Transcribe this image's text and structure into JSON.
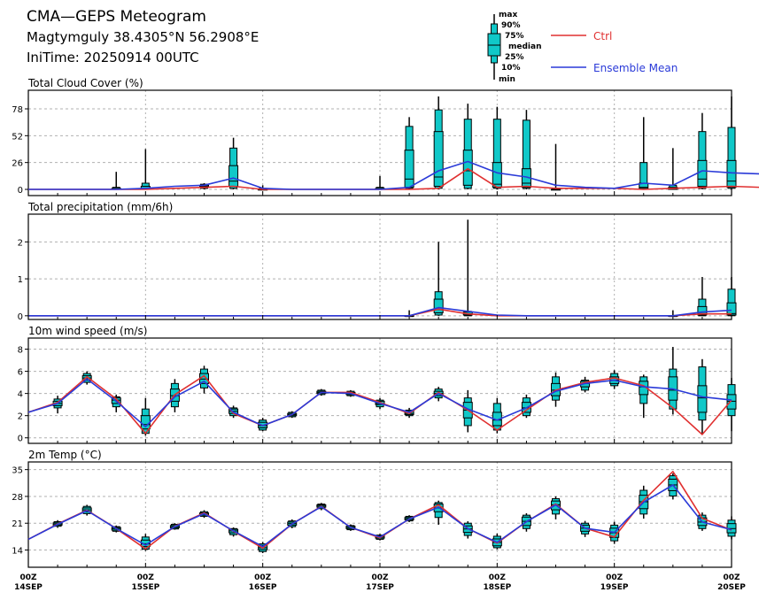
{
  "header": {
    "title": "CMA—GEPS Meteogram",
    "location": "Magtymguly 38.4305°N 56.2908°E",
    "init": "IniTime: 20250914 00UTC"
  },
  "legend": {
    "box_labels": {
      "max": "max",
      "p90": "90%",
      "p75": "75%",
      "median": "median",
      "p25": "25%",
      "p10": "10%",
      "min": "min"
    },
    "ctrl_label": "Ctrl",
    "mean_label": "Ensemble Mean"
  },
  "colors": {
    "box_fill": "#10c8c8",
    "ctrl": "#e03030",
    "mean": "#2a3ad8",
    "grid": "#b0b0b0"
  },
  "x_axis": {
    "day_labels": [
      {
        "top": "00Z",
        "bottom": "14SEP"
      },
      {
        "top": "00Z",
        "bottom": "15SEP"
      },
      {
        "top": "00Z",
        "bottom": "16SEP"
      },
      {
        "top": "00Z",
        "bottom": "17SEP"
      },
      {
        "top": "00Z",
        "bottom": "18SEP"
      },
      {
        "top": "00Z",
        "bottom": "19SEP"
      },
      {
        "top": "00Z",
        "bottom": "20SEP"
      }
    ]
  },
  "chart_data": [
    {
      "type": "boxplot",
      "title": "Total Cloud Cover (%)",
      "x_step_hours": 6,
      "yticks": [
        0,
        26,
        52,
        78
      ],
      "ylim": [
        -6,
        96
      ],
      "boxes": [
        {
          "i": 3,
          "min": 0,
          "p10": 0,
          "p25": 0,
          "median": 0,
          "p75": 1,
          "p90": 2,
          "max": 17
        },
        {
          "i": 4,
          "min": 0,
          "p10": 0,
          "p25": 0,
          "median": 1,
          "p75": 3,
          "p90": 6,
          "max": 39
        },
        {
          "i": 6,
          "min": 0,
          "p10": 1,
          "p25": 2,
          "median": 3,
          "p75": 4,
          "p90": 5,
          "max": 6
        },
        {
          "i": 7,
          "min": 0,
          "p10": 1,
          "p25": 3,
          "median": 8,
          "p75": 23,
          "p90": 40,
          "max": 50
        },
        {
          "i": 8,
          "min": 0,
          "p10": 0,
          "p25": 0,
          "median": 0,
          "p75": 0,
          "p90": 1,
          "max": 4
        },
        {
          "i": 12,
          "min": 0,
          "p10": 0,
          "p25": 0,
          "median": 0,
          "p75": 1,
          "p90": 2,
          "max": 13
        },
        {
          "i": 13,
          "min": 0,
          "p10": 1,
          "p25": 2,
          "median": 10,
          "p75": 38,
          "p90": 61,
          "max": 70
        },
        {
          "i": 14,
          "min": 0,
          "p10": 1,
          "p25": 3,
          "median": 12,
          "p75": 56,
          "p90": 77,
          "max": 90
        },
        {
          "i": 15,
          "min": 0,
          "p10": 1,
          "p25": 4,
          "median": 18,
          "p75": 38,
          "p90": 68,
          "max": 83
        },
        {
          "i": 16,
          "min": 0,
          "p10": 1,
          "p25": 2,
          "median": 5,
          "p75": 26,
          "p90": 68,
          "max": 80
        },
        {
          "i": 17,
          "min": 0,
          "p10": 1,
          "p25": 2,
          "median": 6,
          "p75": 20,
          "p90": 67,
          "max": 77
        },
        {
          "i": 18,
          "min": 0,
          "p10": 0,
          "p25": 0,
          "median": 0,
          "p75": 0,
          "p90": 1,
          "max": 44
        },
        {
          "i": 21,
          "min": 0,
          "p10": 0,
          "p25": 1,
          "median": 2,
          "p75": 6,
          "p90": 26,
          "max": 70
        },
        {
          "i": 22,
          "min": 0,
          "p10": 0,
          "p25": 0,
          "median": 1,
          "p75": 2,
          "p90": 4,
          "max": 40
        },
        {
          "i": 23,
          "min": 0,
          "p10": 1,
          "p25": 3,
          "median": 10,
          "p75": 28,
          "p90": 56,
          "max": 74
        },
        {
          "i": 24,
          "min": 0,
          "p10": 1,
          "p25": 2,
          "median": 8,
          "p75": 28,
          "p90": 60,
          "max": 90
        }
      ],
      "ctrl": [
        0,
        0,
        0,
        0,
        0,
        1,
        2,
        3,
        0,
        0,
        0,
        0,
        0,
        0,
        1,
        20,
        2,
        3,
        1,
        1,
        1,
        0,
        1,
        2,
        3,
        2
      ],
      "mean": [
        0,
        0,
        0,
        0,
        1,
        3,
        4,
        11,
        1,
        0,
        0,
        0,
        0,
        2,
        18,
        27,
        16,
        12,
        4,
        2,
        1,
        6,
        4,
        18,
        16,
        15
      ],
      "ctrl_offset": -1,
      "mean_offset": -1
    },
    {
      "type": "boxplot",
      "title": "Total precipitation (mm/6h)",
      "x_step_hours": 6,
      "yticks": [
        0,
        1,
        2
      ],
      "ylim": [
        -0.1,
        2.75
      ],
      "boxes": [
        {
          "i": 13,
          "min": 0,
          "p10": 0,
          "p25": 0,
          "median": 0,
          "p75": 0,
          "p90": 0,
          "max": 0.15
        },
        {
          "i": 14,
          "min": 0,
          "p10": 0.02,
          "p25": 0.08,
          "median": 0.17,
          "p75": 0.45,
          "p90": 0.65,
          "max": 2.0
        },
        {
          "i": 15,
          "min": 0,
          "p10": 0,
          "p25": 0.02,
          "median": 0.05,
          "p75": 0.1,
          "p90": 0.12,
          "max": 2.6
        },
        {
          "i": 22,
          "min": 0,
          "p10": 0,
          "p25": 0,
          "median": 0,
          "p75": 0,
          "p90": 0,
          "max": 0.15
        },
        {
          "i": 23,
          "min": 0,
          "p10": 0,
          "p25": 0.02,
          "median": 0.06,
          "p75": 0.25,
          "p90": 0.45,
          "max": 1.05
        },
        {
          "i": 24,
          "min": 0,
          "p10": 0,
          "p25": 0.02,
          "median": 0.06,
          "p75": 0.35,
          "p90": 0.72,
          "max": 1.05
        }
      ],
      "ctrl": [
        0,
        0,
        0,
        0,
        0,
        0,
        0,
        0,
        0,
        0,
        0,
        0,
        0,
        0,
        0.18,
        0.05,
        0,
        0,
        0,
        0,
        0,
        0,
        0,
        0.05,
        0.05
      ],
      "mean": [
        0,
        0,
        0,
        0,
        0,
        0,
        0,
        0,
        0,
        0,
        0,
        0,
        0,
        0,
        0.22,
        0.12,
        0.02,
        0,
        0,
        0,
        0,
        0,
        0,
        0.1,
        0.15
      ],
      "ctrl_offset": 0,
      "mean_offset": 0
    },
    {
      "type": "boxplot",
      "title": "10m wind speed (m/s)",
      "x_step_hours": 6,
      "yticks": [
        0,
        2,
        4,
        6,
        8
      ],
      "ylim": [
        -0.5,
        9
      ],
      "boxes": [
        {
          "i": 1,
          "min": 2.2,
          "p10": 2.7,
          "p25": 2.9,
          "median": 3.1,
          "p75": 3.3,
          "p90": 3.5,
          "max": 3.8
        },
        {
          "i": 2,
          "min": 4.8,
          "p10": 5.0,
          "p25": 5.2,
          "median": 5.4,
          "p75": 5.6,
          "p90": 5.8,
          "max": 6.0
        },
        {
          "i": 3,
          "min": 2.3,
          "p10": 2.8,
          "p25": 3.1,
          "median": 3.4,
          "p75": 3.6,
          "p90": 3.7,
          "max": 3.9
        },
        {
          "i": 4,
          "min": 0.2,
          "p10": 0.4,
          "p25": 0.8,
          "median": 1.2,
          "p75": 2.0,
          "p90": 2.6,
          "max": 3.6
        },
        {
          "i": 5,
          "min": 2.3,
          "p10": 2.8,
          "p25": 3.3,
          "median": 3.8,
          "p75": 4.4,
          "p90": 4.9,
          "max": 5.3
        },
        {
          "i": 6,
          "min": 4.0,
          "p10": 4.5,
          "p25": 4.9,
          "median": 5.3,
          "p75": 5.8,
          "p90": 6.2,
          "max": 6.5
        },
        {
          "i": 7,
          "min": 1.8,
          "p10": 2.0,
          "p25": 2.2,
          "median": 2.4,
          "p75": 2.6,
          "p90": 2.7,
          "max": 2.9
        },
        {
          "i": 8,
          "min": 0.6,
          "p10": 0.7,
          "p25": 0.9,
          "median": 1.1,
          "p75": 1.4,
          "p90": 1.6,
          "max": 1.8
        },
        {
          "i": 9,
          "min": 1.8,
          "p10": 1.9,
          "p25": 2.0,
          "median": 2.1,
          "p75": 2.2,
          "p90": 2.3,
          "max": 2.4
        },
        {
          "i": 10,
          "min": 3.8,
          "p10": 3.9,
          "p25": 4.0,
          "median": 4.1,
          "p75": 4.2,
          "p90": 4.3,
          "max": 4.4
        },
        {
          "i": 11,
          "min": 3.7,
          "p10": 3.8,
          "p25": 3.9,
          "median": 4.0,
          "p75": 4.1,
          "p90": 4.2,
          "max": 4.3
        },
        {
          "i": 12,
          "min": 2.6,
          "p10": 2.8,
          "p25": 3.0,
          "median": 3.1,
          "p75": 3.3,
          "p90": 3.4,
          "max": 3.6
        },
        {
          "i": 13,
          "min": 1.8,
          "p10": 2.0,
          "p25": 2.1,
          "median": 2.2,
          "p75": 2.4,
          "p90": 2.5,
          "max": 2.7
        },
        {
          "i": 14,
          "min": 3.3,
          "p10": 3.6,
          "p25": 3.8,
          "median": 4.0,
          "p75": 4.2,
          "p90": 4.4,
          "max": 4.6
        },
        {
          "i": 15,
          "min": 0.5,
          "p10": 1.1,
          "p25": 1.8,
          "median": 2.5,
          "p75": 3.2,
          "p90": 3.6,
          "max": 4.3
        },
        {
          "i": 16,
          "min": 0.4,
          "p10": 0.7,
          "p25": 1.1,
          "median": 1.6,
          "p75": 2.3,
          "p90": 3.1,
          "max": 3.6
        },
        {
          "i": 17,
          "min": 1.8,
          "p10": 2.0,
          "p25": 2.3,
          "median": 2.7,
          "p75": 3.2,
          "p90": 3.6,
          "max": 3.9
        },
        {
          "i": 18,
          "min": 2.8,
          "p10": 3.4,
          "p25": 3.8,
          "median": 4.3,
          "p75": 4.9,
          "p90": 5.5,
          "max": 5.9
        },
        {
          "i": 19,
          "min": 4.1,
          "p10": 4.3,
          "p25": 4.6,
          "median": 4.9,
          "p75": 5.1,
          "p90": 5.2,
          "max": 5.5
        },
        {
          "i": 20,
          "min": 4.4,
          "p10": 4.7,
          "p25": 4.9,
          "median": 5.2,
          "p75": 5.5,
          "p90": 5.8,
          "max": 6.1
        },
        {
          "i": 21,
          "min": 1.8,
          "p10": 3.1,
          "p25": 3.9,
          "median": 4.6,
          "p75": 5.1,
          "p90": 5.5,
          "max": 5.7
        },
        {
          "i": 22,
          "min": 2.1,
          "p10": 2.6,
          "p25": 3.4,
          "median": 4.3,
          "p75": 5.5,
          "p90": 6.2,
          "max": 8.2
        },
        {
          "i": 23,
          "min": 0.3,
          "p10": 1.6,
          "p25": 2.3,
          "median": 3.6,
          "p75": 4.7,
          "p90": 6.4,
          "max": 7.1
        },
        {
          "i": 24,
          "min": 0.6,
          "p10": 2.0,
          "p25": 2.6,
          "median": 3.3,
          "p75": 3.9,
          "p90": 4.8,
          "max": 5.4
        }
      ],
      "ctrl": [
        2.3,
        3.2,
        5.5,
        3.5,
        0.4,
        3.9,
        5.6,
        2.2,
        1.1,
        2.1,
        4.1,
        4.1,
        3.2,
        2.2,
        4.1,
        2.5,
        0.7,
        2.5,
        4.3,
        5.0,
        5.4,
        4.7,
        2.7,
        0.3,
        3.4
      ],
      "mean": [
        2.3,
        3.1,
        5.3,
        3.3,
        1.0,
        3.7,
        5.1,
        2.3,
        1.1,
        2.1,
        4.1,
        4.0,
        3.1,
        2.3,
        4.0,
        2.6,
        1.6,
        2.7,
        4.2,
        4.9,
        5.2,
        4.6,
        4.4,
        3.7,
        3.4
      ]
    },
    {
      "type": "boxplot",
      "title": "2m Temp (°C)",
      "x_step_hours": 6,
      "yticks": [
        14,
        21,
        28,
        35
      ],
      "ylim": [
        9.5,
        37
      ],
      "boxes": [
        {
          "i": 1,
          "min": 19.8,
          "p10": 20.2,
          "p25": 20.5,
          "median": 20.8,
          "p75": 21.1,
          "p90": 21.4,
          "max": 21.8
        },
        {
          "i": 2,
          "min": 23.0,
          "p10": 23.5,
          "p25": 24.0,
          "median": 24.5,
          "p75": 25.0,
          "p90": 25.4,
          "max": 25.8
        },
        {
          "i": 3,
          "min": 18.6,
          "p10": 18.9,
          "p25": 19.2,
          "median": 19.6,
          "p75": 19.9,
          "p90": 20.1,
          "max": 20.4
        },
        {
          "i": 4,
          "min": 13.8,
          "p10": 14.2,
          "p25": 14.9,
          "median": 15.6,
          "p75": 16.6,
          "p90": 17.4,
          "max": 18.2
        },
        {
          "i": 5,
          "min": 19.3,
          "p10": 19.5,
          "p25": 19.8,
          "median": 20.1,
          "p75": 20.4,
          "p90": 20.7,
          "max": 21.0
        },
        {
          "i": 6,
          "min": 22.4,
          "p10": 22.8,
          "p25": 23.1,
          "median": 23.4,
          "p75": 23.7,
          "p90": 24.0,
          "max": 24.4
        },
        {
          "i": 7,
          "min": 17.5,
          "p10": 18.0,
          "p25": 18.5,
          "median": 19.0,
          "p75": 19.4,
          "p90": 19.6,
          "max": 19.9
        },
        {
          "i": 8,
          "min": 13.2,
          "p10": 13.6,
          "p25": 14.1,
          "median": 14.6,
          "p75": 15.2,
          "p90": 15.6,
          "max": 16.1
        },
        {
          "i": 9,
          "min": 19.7,
          "p10": 20.1,
          "p25": 20.5,
          "median": 20.9,
          "p75": 21.3,
          "p90": 21.6,
          "max": 22.0
        },
        {
          "i": 10,
          "min": 24.4,
          "p10": 24.8,
          "p25": 25.2,
          "median": 25.5,
          "p75": 25.8,
          "p90": 26.0,
          "max": 26.3
        },
        {
          "i": 11,
          "min": 19.0,
          "p10": 19.3,
          "p25": 19.6,
          "median": 19.9,
          "p75": 20.2,
          "p90": 20.4,
          "max": 20.7
        },
        {
          "i": 12,
          "min": 16.5,
          "p10": 16.8,
          "p25": 17.1,
          "median": 17.4,
          "p75": 17.7,
          "p90": 17.9,
          "max": 18.2
        },
        {
          "i": 13,
          "min": 21.3,
          "p10": 21.6,
          "p25": 21.9,
          "median": 22.2,
          "p75": 22.5,
          "p90": 22.8,
          "max": 23.1
        },
        {
          "i": 14,
          "min": 20.6,
          "p10": 22.5,
          "p25": 24.0,
          "median": 25.0,
          "p75": 26.0,
          "p90": 26.4,
          "max": 26.9
        },
        {
          "i": 15,
          "min": 17.0,
          "p10": 17.8,
          "p25": 18.6,
          "median": 19.5,
          "p75": 20.3,
          "p90": 21.0,
          "max": 21.5
        },
        {
          "i": 16,
          "min": 14.2,
          "p10": 14.6,
          "p25": 15.1,
          "median": 16.0,
          "p75": 16.9,
          "p90": 17.6,
          "max": 18.3
        },
        {
          "i": 17,
          "min": 18.8,
          "p10": 19.6,
          "p25": 20.4,
          "median": 21.5,
          "p75": 22.6,
          "p90": 23.1,
          "max": 23.6
        },
        {
          "i": 18,
          "min": 22.0,
          "p10": 23.4,
          "p25": 24.5,
          "median": 25.8,
          "p75": 26.8,
          "p90": 27.4,
          "max": 28.0
        },
        {
          "i": 19,
          "min": 17.4,
          "p10": 18.2,
          "p25": 18.9,
          "median": 19.7,
          "p75": 20.5,
          "p90": 21.0,
          "max": 21.6
        },
        {
          "i": 20,
          "min": 15.6,
          "p10": 16.4,
          "p25": 17.3,
          "median": 18.5,
          "p75": 19.7,
          "p90": 20.5,
          "max": 21.4
        },
        {
          "i": 21,
          "min": 22.2,
          "p10": 23.4,
          "p25": 24.8,
          "median": 26.6,
          "p75": 28.3,
          "p90": 29.6,
          "max": 30.8
        },
        {
          "i": 22,
          "min": 27.2,
          "p10": 28.1,
          "p25": 29.5,
          "median": 31.0,
          "p75": 32.5,
          "p90": 33.4,
          "max": 34.0
        },
        {
          "i": 23,
          "min": 19.0,
          "p10": 19.6,
          "p25": 20.4,
          "median": 21.3,
          "p75": 22.4,
          "p90": 23.1,
          "max": 23.8
        },
        {
          "i": 24,
          "min": 16.8,
          "p10": 17.6,
          "p25": 18.5,
          "median": 19.6,
          "p75": 20.9,
          "p90": 21.8,
          "max": 22.8
        }
      ],
      "ctrl": [
        16.8,
        20.8,
        24.4,
        19.6,
        14.3,
        20.2,
        23.7,
        18.9,
        14.5,
        20.8,
        25.4,
        19.9,
        17.2,
        22.1,
        25.8,
        19.6,
        15.8,
        21.4,
        26.0,
        19.7,
        17.4,
        27.0,
        34.5,
        22.3,
        19.2
      ],
      "mean": [
        16.8,
        20.7,
        24.3,
        19.6,
        15.3,
        20.1,
        23.5,
        19.0,
        14.9,
        20.8,
        25.3,
        19.9,
        17.4,
        22.1,
        25.2,
        19.6,
        16.0,
        21.4,
        25.8,
        19.7,
        18.6,
        26.5,
        31.0,
        21.3,
        19.3
      ]
    }
  ]
}
